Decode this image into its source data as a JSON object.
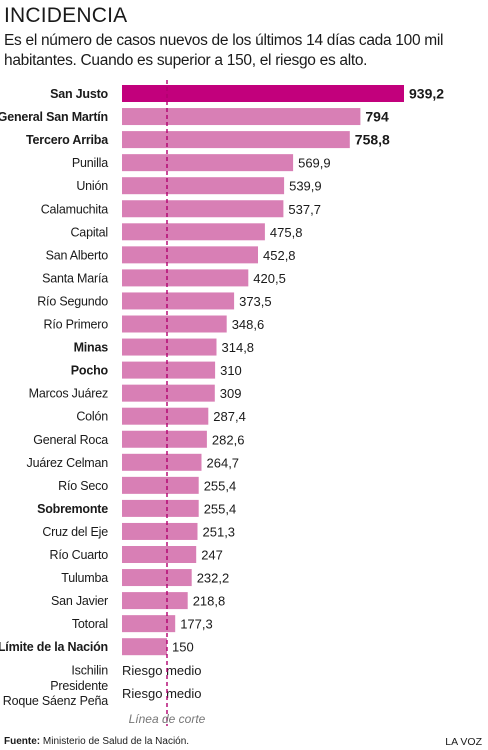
{
  "header": {
    "title": "INCIDENCIA",
    "subtitle": "Es el número de casos nuevos de los últimos 14 días cada 100 mil habitantes. Cuando es superior a 150, el riesgo es alto."
  },
  "footer": {
    "source_label": "Fuente:",
    "source_text": "Ministerio de Salud de la Nación.",
    "credit": "LA VOZ"
  },
  "chart_data": {
    "type": "bar",
    "orientation": "horizontal",
    "title": "",
    "xlabel": "",
    "ylabel": "",
    "xlim": [
      0,
      1000
    ],
    "categories": [
      "San Justo",
      "General San Martín",
      "Tercero Arriba",
      "Punilla",
      "Unión",
      "Calamuchita",
      "Capital",
      "San Alberto",
      "Santa María",
      "Río Segundo",
      "Río Primero",
      "Minas",
      "Pocho",
      "Marcos Juárez",
      "Colón",
      "General Roca",
      "Juárez Celman",
      "Río Seco",
      "Sobremonte",
      "Cruz del Eje",
      "Río Cuarto",
      "Tulumba",
      "San Javier",
      "Totoral",
      "Límite de la Nación"
    ],
    "values": [
      939.2,
      794,
      758.8,
      569.9,
      539.9,
      537.7,
      475.8,
      452.8,
      420.5,
      373.5,
      348.6,
      314.8,
      310,
      309,
      287.4,
      282.6,
      264.7,
      255.4,
      255.4,
      251.3,
      247,
      232.2,
      218.8,
      177.3,
      150
    ],
    "value_labels": [
      "939,2",
      "794",
      "758,8",
      "569,9",
      "539,9",
      "537,7",
      "475,8",
      "452,8",
      "420,5",
      "373,5",
      "348,6",
      "314,8",
      "310",
      "309",
      "287,4",
      "282,6",
      "264,7",
      "255,4",
      "255,4",
      "251,3",
      "247",
      "232,2",
      "218,8",
      "177,3",
      "150"
    ],
    "bold_categories": [
      "San Justo",
      "General San Martín",
      "Tercero Arriba",
      "Minas",
      "Pocho",
      "Sobremonte",
      "Límite de la Nación"
    ],
    "bold_values": [
      "939,2",
      "794",
      "758,8"
    ],
    "extra_rows": [
      {
        "label_lines": [
          "Ischilin"
        ],
        "text": "Riesgo medio"
      },
      {
        "label_lines": [
          "Presidente",
          "Roque Sáenz Peña"
        ],
        "text": "Riesgo medio"
      }
    ],
    "reference_line": {
      "value": 150,
      "label": "Línea de corte"
    },
    "colors": {
      "highlight": "#c2007c",
      "bar": "#d87fb5",
      "reference": "#b0006e"
    }
  }
}
